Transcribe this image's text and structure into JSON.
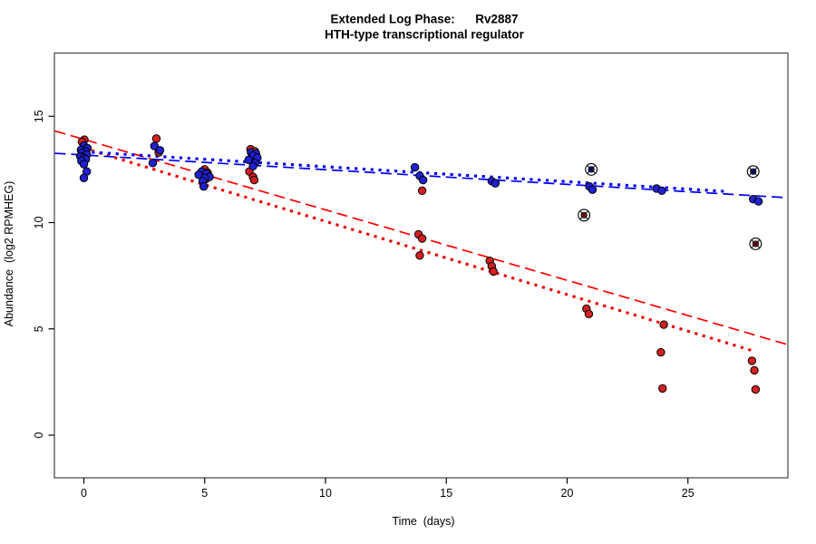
{
  "title": {
    "line1": "Extended Log Phase:      Rv2887",
    "line2": "HTH-type transcriptional regulator"
  },
  "axes": {
    "x_label": "Time  (days)",
    "y_label": "Abundance  (log2 RPMHEG)",
    "x_ticks": [
      0,
      5,
      10,
      15,
      20,
      25
    ],
    "y_ticks": [
      0,
      5,
      10,
      15
    ]
  },
  "colors": {
    "red_line": "#ff0000",
    "blue_line": "#0000f0",
    "red_point": "#d42020",
    "blue_point": "#2020d4",
    "point_stroke": "#000000",
    "box": "#444444"
  },
  "chart_data": {
    "type": "scatter",
    "title": "Extended Log Phase: Rv2887 — HTH-type transcriptional regulator",
    "xlabel": "Time (days)",
    "ylabel": "Abundance (log2 RPMHEG)",
    "xlim": [
      -1.2,
      29.1
    ],
    "ylim": [
      -2.0,
      18.0
    ],
    "grid": false,
    "legend": "none",
    "series": [
      {
        "name": "red-points",
        "marker": "filled-circle",
        "color": "#d42020",
        "points": [
          [
            0,
            13.9,
            0.02
          ],
          [
            0,
            13.8,
            -0.08
          ],
          [
            0,
            13.35,
            0.05
          ],
          [
            3,
            13.95,
            0.0
          ],
          [
            3,
            13.3,
            0.1
          ],
          [
            5,
            12.5,
            0.0
          ],
          [
            5,
            12.35,
            0.12
          ],
          [
            5,
            12.05,
            0.05
          ],
          [
            7,
            13.45,
            -0.1
          ],
          [
            7,
            13.35,
            0.08
          ],
          [
            7,
            12.4,
            -0.15
          ],
          [
            7,
            12.15,
            0.0
          ],
          [
            7,
            12.0,
            0.05
          ],
          [
            14,
            11.5,
            0.0
          ],
          [
            14,
            9.45,
            -0.15
          ],
          [
            14,
            9.25,
            0.0
          ],
          [
            14,
            8.45,
            -0.1
          ],
          [
            17,
            8.2,
            -0.2
          ],
          [
            17,
            7.95,
            -0.12
          ],
          [
            17,
            7.7,
            -0.05
          ],
          [
            21,
            5.95,
            -0.2
          ],
          [
            21,
            5.7,
            -0.1
          ],
          [
            24,
            5.2,
            0.0
          ],
          [
            24,
            3.9,
            -0.12
          ],
          [
            24,
            2.2,
            -0.05
          ],
          [
            28,
            3.5,
            -0.35
          ],
          [
            28,
            3.05,
            -0.25
          ],
          [
            28,
            2.15,
            -0.2
          ]
        ]
      },
      {
        "name": "red-flagged-points",
        "marker": "circle-crossed",
        "color": "#d42020",
        "points": [
          [
            20.7,
            10.35,
            0.0
          ],
          [
            27.8,
            9.0,
            0.0
          ]
        ]
      },
      {
        "name": "blue-points",
        "marker": "filled-circle",
        "color": "#2020d4",
        "points": [
          [
            0,
            13.62,
            0.0
          ],
          [
            0,
            13.5,
            0.15
          ],
          [
            0,
            13.42,
            -0.12
          ],
          [
            0,
            13.35,
            0.08
          ],
          [
            0,
            13.28,
            -0.08
          ],
          [
            0,
            13.2,
            0.12
          ],
          [
            0,
            13.12,
            -0.15
          ],
          [
            0,
            13.05,
            0.0
          ],
          [
            0,
            12.98,
            0.08
          ],
          [
            0,
            12.9,
            -0.1
          ],
          [
            0,
            12.75,
            0.0
          ],
          [
            0,
            12.4,
            0.12
          ],
          [
            0,
            12.1,
            0.0
          ],
          [
            3,
            13.6,
            -0.08
          ],
          [
            3,
            13.4,
            0.15
          ],
          [
            3,
            12.8,
            -0.15
          ],
          [
            5,
            12.4,
            -0.12
          ],
          [
            5,
            12.3,
            0.08
          ],
          [
            5,
            12.25,
            -0.25
          ],
          [
            5,
            12.15,
            0.2
          ],
          [
            5,
            12.1,
            0.0
          ],
          [
            5,
            11.95,
            -0.08
          ],
          [
            5,
            11.7,
            -0.04
          ],
          [
            7,
            13.3,
            -0.08
          ],
          [
            7,
            13.25,
            0.12
          ],
          [
            7,
            13.15,
            0.0
          ],
          [
            7,
            13.05,
            0.18
          ],
          [
            7,
            12.95,
            -0.18
          ],
          [
            7,
            12.8,
            0.08
          ],
          [
            7,
            12.65,
            0.0
          ],
          [
            14,
            12.6,
            -0.3
          ],
          [
            14,
            12.2,
            -0.1
          ],
          [
            14,
            12.0,
            0.04
          ],
          [
            17,
            11.95,
            -0.12
          ],
          [
            17,
            11.85,
            0.03
          ],
          [
            21,
            11.7,
            -0.08
          ],
          [
            21,
            11.55,
            0.05
          ],
          [
            24,
            11.6,
            -0.3
          ],
          [
            24,
            11.5,
            -0.08
          ],
          [
            28,
            11.1,
            -0.3
          ],
          [
            28,
            11.0,
            -0.08
          ]
        ]
      },
      {
        "name": "blue-flagged-points",
        "marker": "circle-crossed",
        "color": "#2020d4",
        "points": [
          [
            21.0,
            12.5,
            0.0
          ],
          [
            27.7,
            12.4,
            0.0
          ]
        ]
      }
    ],
    "fit_lines": [
      {
        "name": "red-dashed-fit",
        "color": "#ff0000",
        "style": "longdash",
        "from": [
          -1.2,
          14.31
        ],
        "to": [
          29.1,
          4.27
        ]
      },
      {
        "name": "red-dotted-fit",
        "color": "#ee0000",
        "style": "bold-dotted",
        "from": [
          0.0,
          13.5
        ],
        "to": [
          27.8,
          3.93
        ]
      },
      {
        "name": "blue-dashed-fit",
        "color": "#0000f0",
        "style": "longdash",
        "from": [
          -1.2,
          13.26
        ],
        "to": [
          29.1,
          11.17
        ]
      },
      {
        "name": "blue-dotted-fit",
        "color": "#0000ee",
        "style": "bold-dotted",
        "from": [
          0.0,
          13.33
        ],
        "to": [
          26.5,
          11.47
        ]
      }
    ]
  }
}
